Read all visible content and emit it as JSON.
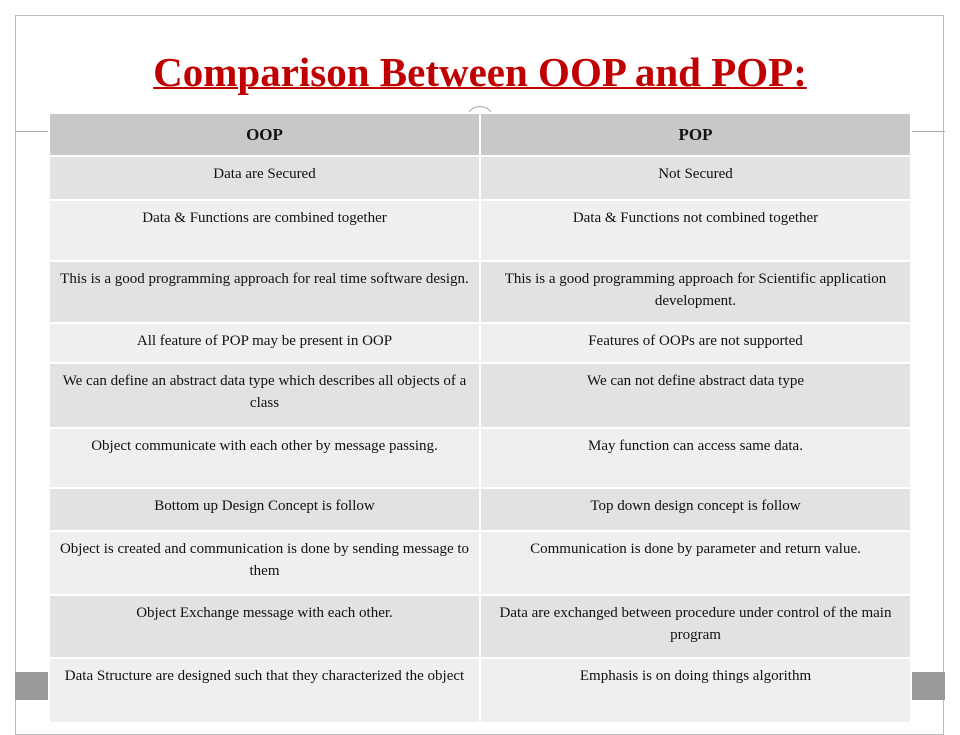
{
  "header": {
    "title": "Comparison Between OOP and POP:"
  },
  "table": {
    "columns": [
      "OOP",
      "POP"
    ],
    "rows": [
      [
        "Data are Secured",
        "Not Secured"
      ],
      [
        "Data & Functions are combined together",
        "Data & Functions not combined together"
      ],
      [
        "This is a good programming approach for real time software design.",
        "This is a good programming approach for Scientific  application development."
      ],
      [
        "All feature of POP may be present in OOP",
        "Features of OOPs are not supported"
      ],
      [
        "We can define an abstract data type which describes all objects of a class",
        "We can not define abstract data type"
      ],
      [
        "Object communicate with each other by message passing.",
        "May function can access same data."
      ],
      [
        "Bottom up Design Concept is follow",
        "Top down design concept is follow"
      ],
      [
        "Object is created and communication is done by sending message to them",
        "Communication is done by parameter and return value."
      ],
      [
        "Object Exchange message with each other.",
        "Data are exchanged between procedure under control of the main program"
      ],
      [
        "Data Structure are designed  such that they characterized the object",
        "Emphasis is on doing things algorithm"
      ]
    ]
  }
}
